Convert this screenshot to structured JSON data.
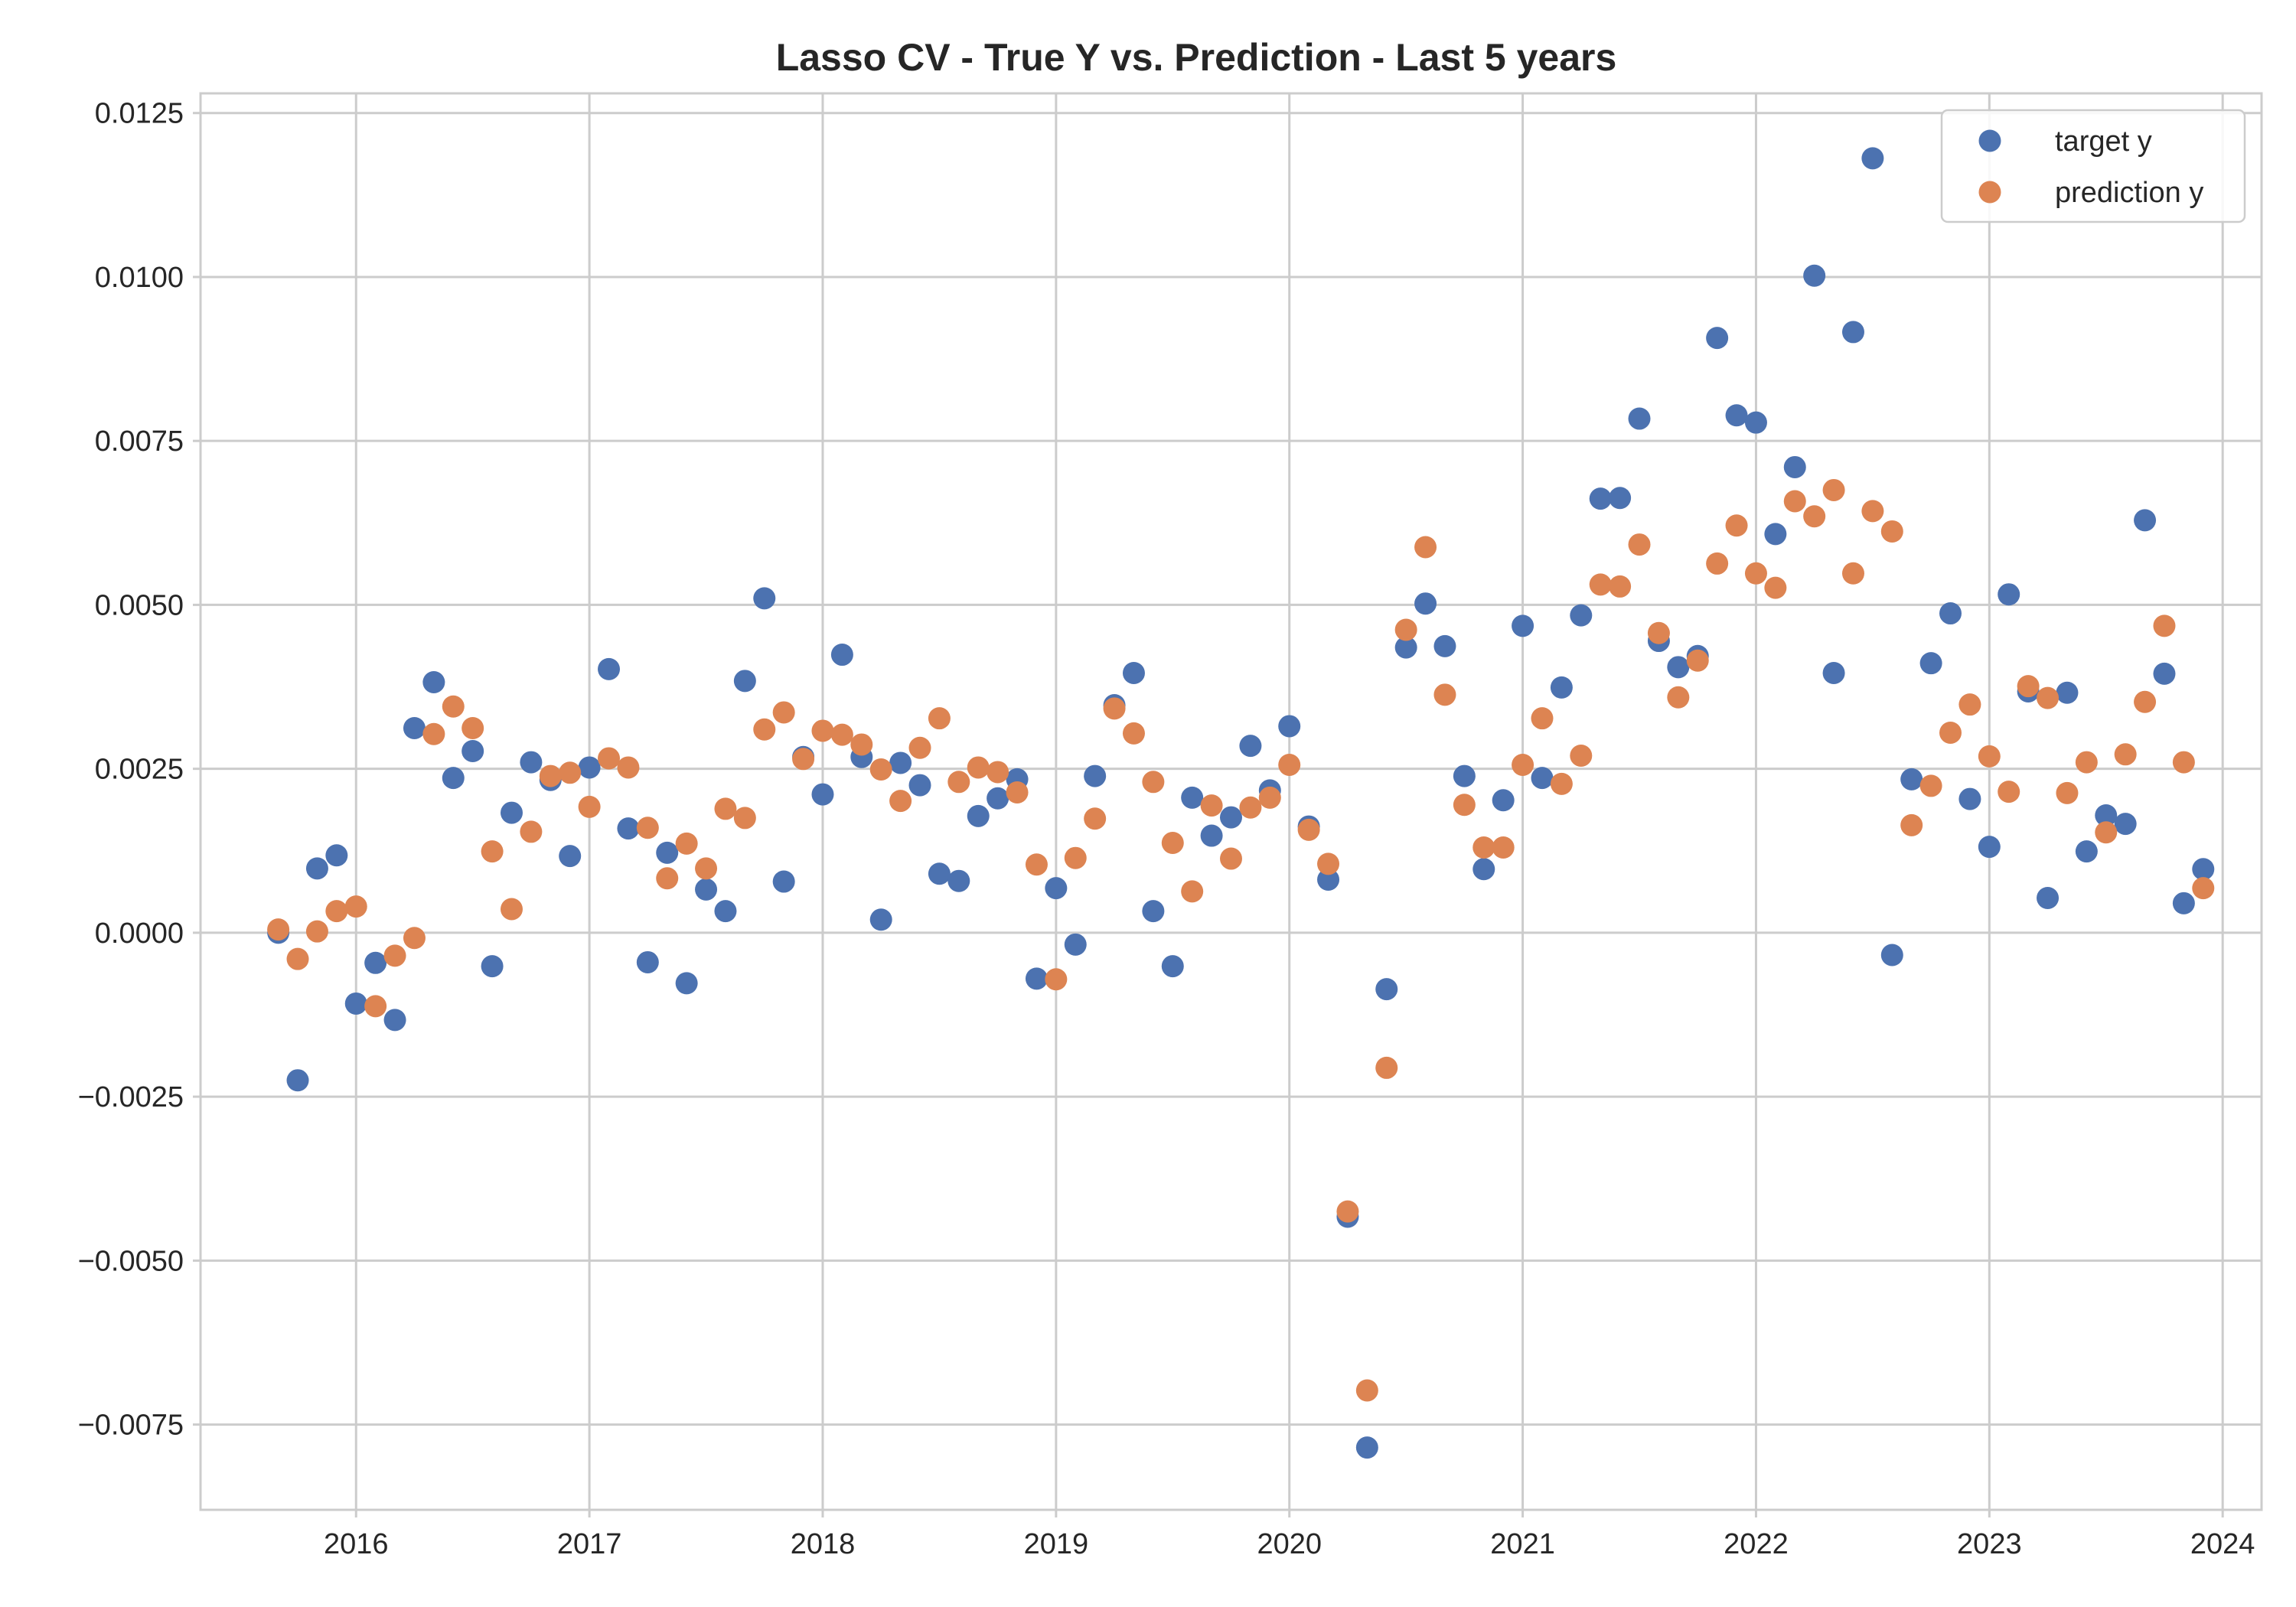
{
  "chart_data": {
    "type": "scatter",
    "title": "Lasso CV - True Y vs. Prediction - Last 5 years",
    "xlabel": "",
    "ylabel": "",
    "x_start": "2015-09",
    "xlim": [
      "2015-05",
      "2024-03"
    ],
    "ylim": [
      -0.0088,
      0.0128
    ],
    "x_ticks": [
      "2016",
      "2017",
      "2018",
      "2019",
      "2020",
      "2021",
      "2022",
      "2023",
      "2024"
    ],
    "y_ticks": [
      {
        "value": 0.0125,
        "label": "0.0125"
      },
      {
        "value": 0.01,
        "label": "0.0100"
      },
      {
        "value": 0.0075,
        "label": "0.0075"
      },
      {
        "value": 0.005,
        "label": "0.0050"
      },
      {
        "value": 0.0025,
        "label": "0.0025"
      },
      {
        "value": 0.0,
        "label": "0.0000"
      },
      {
        "value": -0.0025,
        "label": "−0.0025"
      },
      {
        "value": -0.005,
        "label": "−0.0050"
      },
      {
        "value": -0.0075,
        "label": "−0.0075"
      }
    ],
    "grid": true,
    "legend_position": "top-right",
    "series": [
      {
        "name": "target y",
        "color": "#4c72b0",
        "values": [
          0.0,
          -0.00225,
          0.00098,
          0.00118,
          -0.00108,
          -0.00046,
          -0.00133,
          0.00312,
          0.00382,
          0.00236,
          0.00277,
          -0.00051,
          0.00183,
          0.0026,
          0.00233,
          0.00117,
          0.00252,
          0.00402,
          0.00159,
          -0.00045,
          0.00122,
          -0.00077,
          0.00066,
          0.00033,
          0.00384,
          0.0051,
          0.00078,
          0.00268,
          0.00211,
          0.00424,
          0.00268,
          0.0002,
          0.00259,
          0.00225,
          0.0009,
          0.00079,
          0.00178,
          0.00205,
          0.00234,
          -0.0007,
          0.00068,
          -0.00018,
          0.00239,
          0.00347,
          0.00396,
          0.00033,
          -0.00051,
          0.00206,
          0.00148,
          0.00176,
          0.00285,
          0.00217,
          0.00315,
          0.00162,
          0.00081,
          -0.00433,
          -0.00785,
          -0.00086,
          0.00435,
          0.00502,
          0.00437,
          0.00239,
          0.00097,
          0.00202,
          0.00468,
          0.00236,
          0.00374,
          0.00484,
          0.00662,
          0.00663,
          0.00784,
          0.00445,
          0.00405,
          0.00422,
          0.00907,
          0.00789,
          0.00778,
          0.00608,
          0.0071,
          0.01002,
          0.00396,
          0.00916,
          0.01181,
          -0.00034,
          0.00234,
          0.00411,
          0.00487,
          0.00204,
          0.00131,
          0.00516,
          0.00368,
          0.00053,
          0.00366,
          0.00124,
          0.00179,
          0.00166,
          0.00629,
          0.00395,
          0.00045,
          0.00097
        ]
      },
      {
        "name": "prediction y",
        "color": "#dd8452",
        "values": [
          5e-05,
          -0.0004,
          2e-05,
          0.00033,
          0.0004,
          -0.00112,
          -0.00035,
          -8e-05,
          0.00303,
          0.00345,
          0.00312,
          0.00124,
          0.00036,
          0.00154,
          0.00239,
          0.00244,
          0.00192,
          0.00266,
          0.00252,
          0.0016,
          0.00083,
          0.00136,
          0.00098,
          0.00189,
          0.00175,
          0.0031,
          0.00336,
          0.00265,
          0.00308,
          0.00302,
          0.00287,
          0.00249,
          0.00201,
          0.00282,
          0.00327,
          0.0023,
          0.00252,
          0.00245,
          0.00214,
          0.00104,
          -0.00071,
          0.00114,
          0.00174,
          0.00342,
          0.00304,
          0.0023,
          0.00137,
          0.00063,
          0.00194,
          0.00113,
          0.00191,
          0.00206,
          0.00256,
          0.00157,
          0.00105,
          -0.00425,
          -0.00698,
          -0.00206,
          0.00462,
          0.00588,
          0.00363,
          0.00195,
          0.0013,
          0.0013,
          0.00256,
          0.00327,
          0.00227,
          0.0027,
          0.00531,
          0.00528,
          0.00592,
          0.00457,
          0.00359,
          0.00415,
          0.00563,
          0.00621,
          0.00548,
          0.00526,
          0.00658,
          0.00635,
          0.00675,
          0.00548,
          0.00643,
          0.00612,
          0.00164,
          0.00224,
          0.00305,
          0.00348,
          0.00269,
          0.00215,
          0.00376,
          0.00358,
          0.00213,
          0.0026,
          0.00153,
          0.00272,
          0.00352,
          0.00468,
          0.0026,
          0.00068
        ]
      }
    ]
  }
}
